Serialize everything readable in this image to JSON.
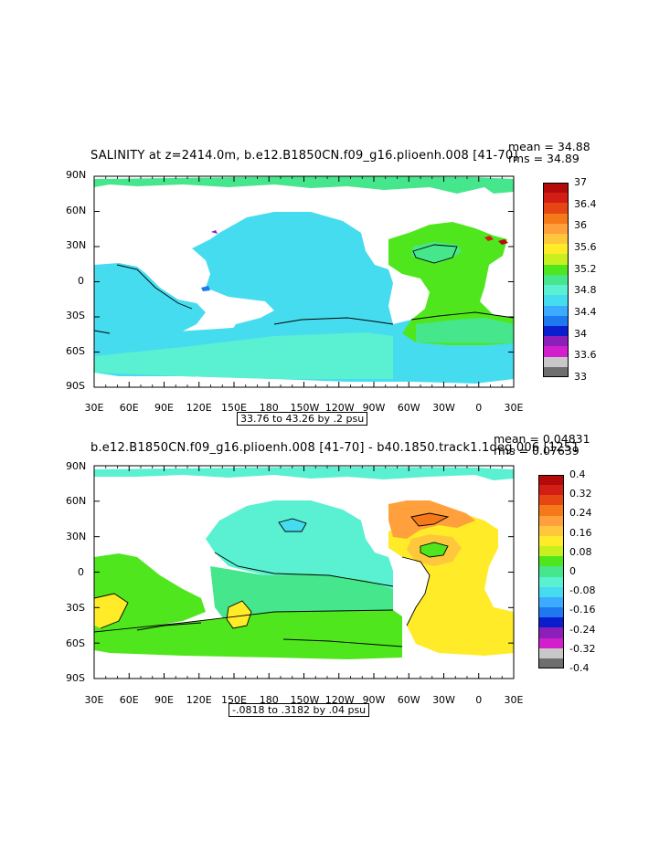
{
  "maps": [
    {
      "title": "SALINITY at z=2414.0m, b.e12.B1850CN.f09_g16.plioenh.008 [41-70]",
      "mean_label": "mean = 34.88",
      "rms_label": "rms = 34.89",
      "range_label": "33.76 to 43.26 by .2 psu",
      "lon_labels": [
        "30E",
        "60E",
        "90E",
        "120E",
        "150E",
        "180",
        "150W",
        "120W",
        "90W",
        "60W",
        "30W",
        "0",
        "30E"
      ],
      "lat_labels": [
        "90N",
        "60N",
        "30N",
        "0",
        "30S",
        "60S",
        "90S"
      ],
      "colorbar_labels": [
        "37",
        "36.4",
        "36",
        "35.6",
        "35.2",
        "34.8",
        "34.4",
        "34",
        "33.6",
        "33"
      ],
      "colors": [
        "#6e6e6e",
        "#c8c8c8",
        "#d21ecd",
        "#8c1eb9",
        "#0a1ecd",
        "#1e78f0",
        "#3caaff",
        "#46dcf0",
        "#5af0d2",
        "#46e68c",
        "#50e61e",
        "#c8f01e",
        "#ffeb28",
        "#ffc83c",
        "#ffa03c",
        "#f57819",
        "#e64614",
        "#d21e14",
        "#b40a0a"
      ]
    },
    {
      "title": "b.e12.B1850CN.f09_g16.plioenh.008 [41-70] - b40.1850.track1.1deg.006 [1251",
      "mean_label": "mean = 0.04831",
      "rms_label": "rms = 0.07639",
      "range_label": "-.0818 to .3182 by .04 psu",
      "lon_labels": [
        "30E",
        "60E",
        "90E",
        "120E",
        "150E",
        "180",
        "150W",
        "120W",
        "90W",
        "60W",
        "30W",
        "0",
        "30E"
      ],
      "lat_labels": [
        "90N",
        "60N",
        "30N",
        "0",
        "30S",
        "60S",
        "90S"
      ],
      "colorbar_labels": [
        "0.4",
        "0.32",
        "0.24",
        "0.16",
        "0.08",
        "0",
        "-0.08",
        "-0.16",
        "-0.24",
        "-0.32",
        "-0.4"
      ],
      "colors": [
        "#6e6e6e",
        "#c8c8c8",
        "#d21ecd",
        "#8c1eb9",
        "#0a1ecd",
        "#1e78f0",
        "#3caaff",
        "#46dcf0",
        "#5af0d2",
        "#46e68c",
        "#50e61e",
        "#c8f01e",
        "#ffeb28",
        "#ffc83c",
        "#ffa03c",
        "#f57819",
        "#e64614",
        "#d21e14",
        "#b40a0a"
      ]
    }
  ]
}
